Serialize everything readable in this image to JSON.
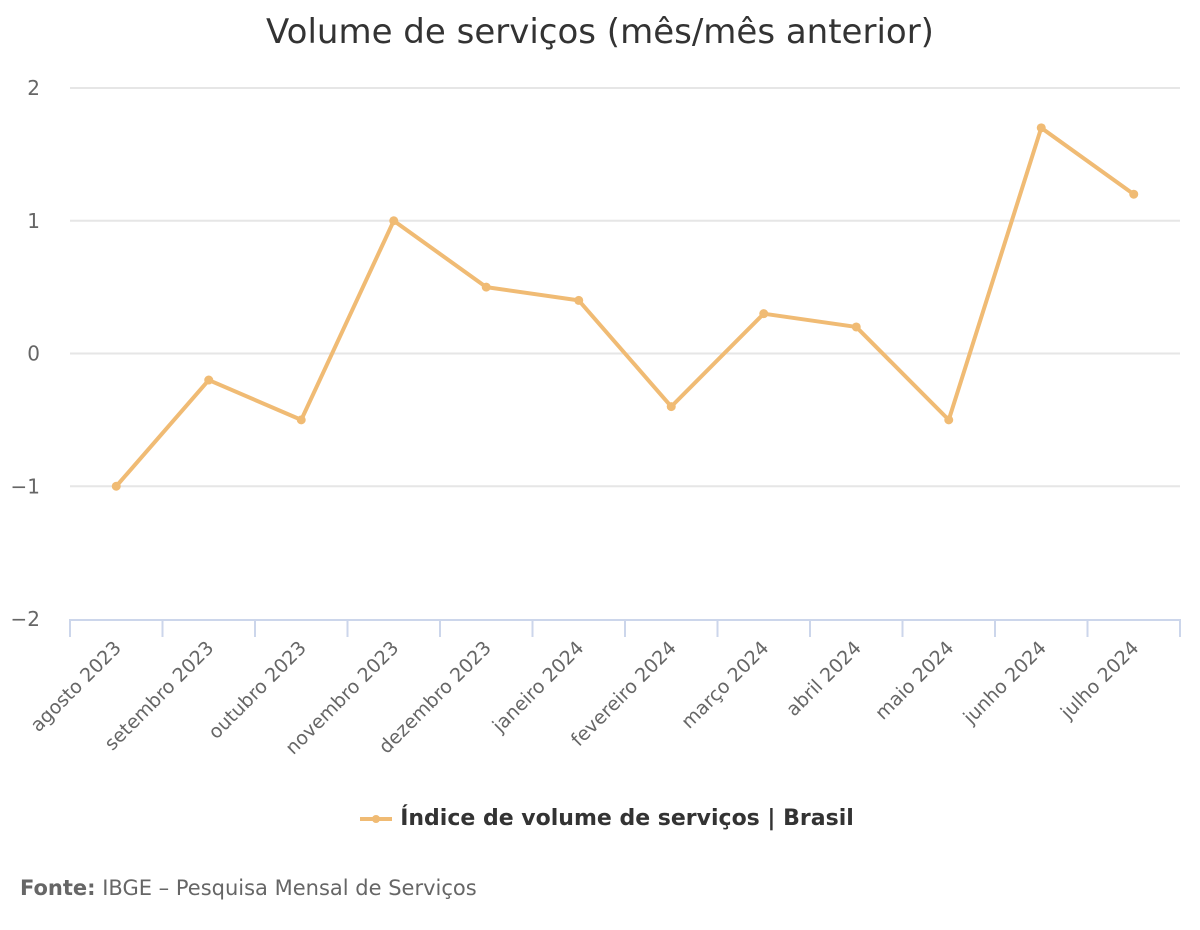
{
  "chart_data": {
    "type": "line",
    "title": "Volume de serviços (mês/mês anterior)",
    "xlabel": "",
    "ylabel": "",
    "categories": [
      "agosto 2023",
      "setembro 2023",
      "outubro 2023",
      "novembro 2023",
      "dezembro 2023",
      "janeiro 2024",
      "fevereiro 2024",
      "março 2024",
      "abril 2024",
      "maio 2024",
      "junho 2024",
      "julho 2024"
    ],
    "series": [
      {
        "name": "Índice de volume de serviços | Brasil",
        "color": "#f0bb74",
        "values": [
          -1.0,
          -0.2,
          -0.5,
          1.0,
          0.5,
          0.4,
          -0.4,
          0.3,
          0.2,
          -0.5,
          1.7,
          1.2
        ]
      }
    ],
    "ylim": [
      -2,
      2
    ],
    "yticks": [
      2,
      1,
      0,
      -1,
      -2
    ],
    "ytick_labels": [
      "2",
      "1",
      "0",
      "−1",
      "−2"
    ],
    "grid": true,
    "legend_position": "bottom"
  },
  "legend": {
    "label": "Índice de volume de serviços | Brasil"
  },
  "source": {
    "prefix": "Fonte:",
    "text": " IBGE – Pesquisa Mensal de Serviços"
  }
}
